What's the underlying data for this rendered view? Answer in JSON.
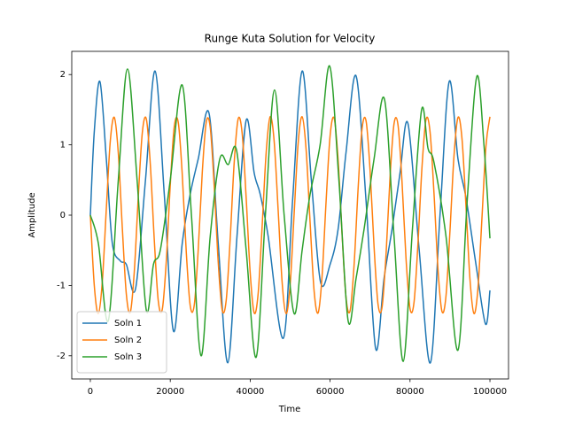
{
  "chart_data": {
    "type": "line",
    "title": "Runge Kuta Solution for Velocity",
    "x_label": "Time",
    "y_label": "Amplitude",
    "xlim": [
      -4650,
      104650
    ],
    "ylim": [
      -2.33,
      2.33
    ],
    "xticks": [
      0,
      20000,
      40000,
      60000,
      80000,
      100000
    ],
    "yticks": [
      -2,
      -1,
      0,
      1,
      2
    ],
    "legend": "lower left",
    "series": [
      {
        "name": "Soln 1",
        "color": "#1f77b4",
        "x": [
          0,
          1000,
          2400,
          4000,
          5500,
          7500,
          9000,
          11300,
          13800,
          16200,
          18500,
          20800,
          23000,
          25000,
          27000,
          29700,
          32000,
          34400,
          36700,
          39000,
          41000,
          42500,
          44500,
          48300,
          50600,
          53000,
          55300,
          57600,
          60000,
          62000,
          64000,
          66500,
          69000,
          71400,
          73500,
          75500,
          77500,
          79500,
          82300,
          85100,
          87500,
          89800,
          92000,
          94000,
          96500,
          98900,
          100000
        ],
        "values": [
          0,
          1.2,
          1.9,
          0.8,
          -0.4,
          -0.65,
          -0.7,
          -1.05,
          0.5,
          2.05,
          0.3,
          -1.65,
          -0.4,
          0.3,
          0.8,
          1.45,
          -0.4,
          -2.1,
          -0.3,
          1.35,
          0.6,
          0.3,
          -0.3,
          -1.75,
          0.2,
          2.05,
          0.5,
          -0.95,
          -0.7,
          -0.2,
          0.9,
          1.98,
          0.2,
          -1.9,
          -0.9,
          -0.2,
          0.6,
          1.3,
          -0.5,
          -2.1,
          0,
          1.9,
          0.8,
          0.25,
          -0.7,
          -1.55,
          -1.07
        ]
      },
      {
        "name": "Soln 2",
        "color": "#ff7f0e",
        "x": [
          0,
          1000,
          2000,
          3000,
          4000,
          5000,
          6000,
          7000,
          8000,
          9000,
          10000,
          11000,
          12000,
          13000,
          14000,
          15000,
          16000,
          17000,
          18000,
          19000,
          20000,
          21000,
          22000,
          23000,
          24000,
          25000,
          26000,
          27000,
          28000,
          29000,
          30000,
          31000,
          32000,
          33000,
          34000,
          35000,
          36000,
          37000,
          38000,
          39000,
          40000,
          41000,
          42000,
          43000,
          44000,
          45000,
          46000,
          47000,
          48000,
          49000,
          50000,
          51000,
          52000,
          53000,
          54000,
          55000,
          56000,
          57000,
          58000,
          59000,
          60000,
          61000,
          62000,
          63000,
          64000,
          65000,
          66000,
          67000,
          68000,
          69000,
          70000,
          71000,
          72000,
          73000,
          74000,
          75000,
          76000,
          77000,
          78000,
          79000,
          80000,
          81000,
          82000,
          83000,
          84000,
          85000,
          86000,
          87000,
          88000,
          89000,
          90000,
          91000,
          92000,
          93000,
          94000,
          95000,
          96000,
          97000,
          98000,
          99000,
          100000
        ],
        "values": [
          0,
          -1.01,
          -1.4,
          -0.94,
          0.09,
          1.06,
          1.39,
          0.88,
          -0.18,
          -1.12,
          -1.38,
          -0.8,
          0.26,
          1.17,
          1.37,
          0.73,
          -0.35,
          -1.22,
          -1.34,
          -0.66,
          0.43,
          1.26,
          1.32,
          0.58,
          -0.52,
          -1.29,
          -1.28,
          -0.49,
          0.6,
          1.32,
          1.25,
          0.41,
          -0.67,
          -1.35,
          -1.21,
          -0.33,
          0.75,
          1.37,
          1.16,
          0.24,
          -0.82,
          -1.39,
          -1.11,
          -0.15,
          0.89,
          1.4,
          1.05,
          0.07,
          -0.96,
          -1.4,
          -0.99,
          0.02,
          1.02,
          1.4,
          0.93,
          -0.11,
          -1.08,
          -1.39,
          -0.86,
          0.2,
          1.13,
          1.38,
          0.79,
          -0.28,
          -1.18,
          -1.36,
          -0.71,
          0.37,
          1.23,
          1.34,
          0.64,
          -0.45,
          -1.27,
          -1.31,
          -0.56,
          0.54,
          1.3,
          1.28,
          0.47,
          -0.62,
          -1.33,
          -1.24,
          -0.39,
          0.69,
          1.36,
          1.19,
          0.31,
          -0.77,
          -1.37,
          -1.15,
          -0.22,
          0.84,
          1.39,
          1.09,
          0.13,
          -0.91,
          -1.4,
          -1.04,
          -0.04,
          0.98,
          1.4
        ]
      },
      {
        "name": "Soln 3",
        "color": "#2ca02c",
        "x": [
          0,
          2000,
          4500,
          7000,
          9300,
          11700,
          14000,
          15800,
          17500,
          20000,
          23000,
          25300,
          27700,
          30000,
          32400,
          34500,
          36600,
          39000,
          41500,
          43800,
          46100,
          48500,
          51000,
          53000,
          55000,
          57500,
          59900,
          62200,
          64500,
          66500,
          68500,
          71000,
          73600,
          76000,
          78300,
          80600,
          82900,
          84500,
          86000,
          89000,
          92000,
          94300,
          96700,
          98500,
          100000
        ],
        "values": [
          0,
          -0.4,
          -1.5,
          0.5,
          2.08,
          0.5,
          -1.35,
          -0.7,
          -0.5,
          0.5,
          1.85,
          0,
          -2.0,
          -0.3,
          0.8,
          0.72,
          0.92,
          -0.5,
          -2.02,
          0,
          1.78,
          0,
          -1.4,
          -0.5,
          0.3,
          1.0,
          2.12,
          0.5,
          -1.5,
          -0.9,
          -0.2,
          0.8,
          1.65,
          -0.3,
          -2.08,
          -0.2,
          1.5,
          0.95,
          0.75,
          -0.3,
          -1.92,
          0.2,
          1.97,
          1.0,
          -0.33
        ]
      }
    ]
  }
}
